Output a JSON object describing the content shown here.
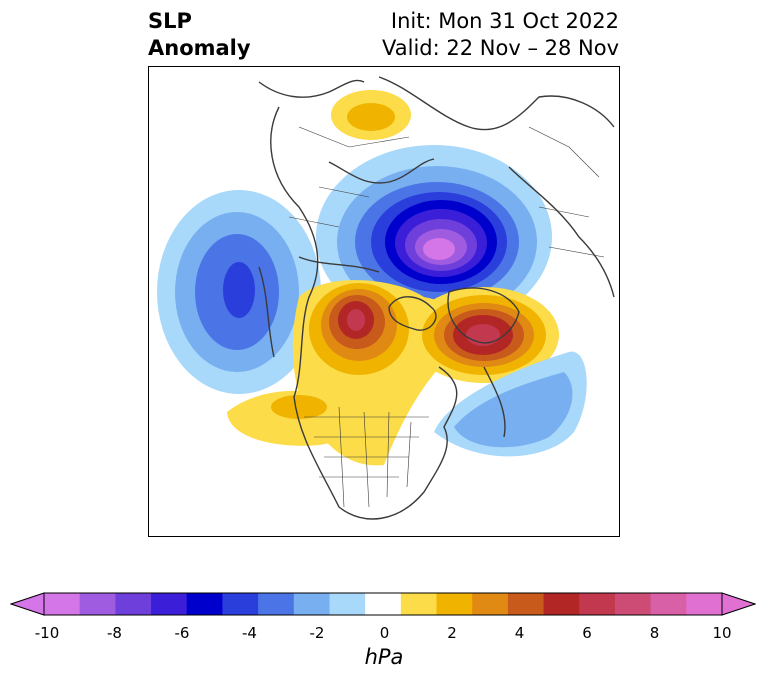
{
  "header": {
    "title_line1": "SLP",
    "title_line2": "Anomaly",
    "init": "Init: Mon 31 Oct 2022",
    "valid": "Valid: 22 Nov – 28 Nov"
  },
  "colorbar": {
    "unit": "hPa",
    "ticks": [
      "-10",
      "-8",
      "-6",
      "-4",
      "-2",
      "0",
      "2",
      "4",
      "6",
      "8",
      "10"
    ],
    "levels": [
      -10,
      -9,
      -8,
      -7,
      -6,
      -5,
      -4,
      -3,
      -2,
      -1,
      1,
      2,
      3,
      4,
      5,
      6,
      7,
      8,
      9,
      10
    ],
    "colors": [
      "#d475e8",
      "#a05ce0",
      "#6f3fdc",
      "#3b1fd8",
      "#0000cc",
      "#2a3edc",
      "#4b74e6",
      "#78aff0",
      "#a8d8fa",
      "#ffffff",
      "#fcdc48",
      "#f0b400",
      "#e08a14",
      "#c85a1c",
      "#b22626",
      "#c2384e",
      "#cc4c76",
      "#d860a6",
      "#e070d2"
    ],
    "extend": "both"
  }
}
